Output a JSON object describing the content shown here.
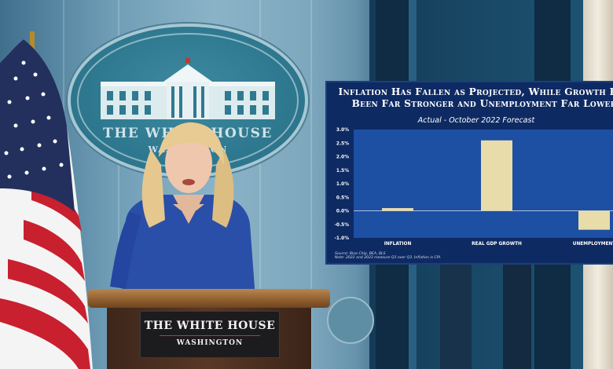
{
  "podium": {
    "title": "THE WHITE HOUSE",
    "subtitle": "WASHINGTON"
  },
  "seal": {
    "text": "THE WHITE HOUSE",
    "subtext": "WASHINGTON"
  },
  "slide": {
    "title_line1": "Inflation Has Fallen as Projected, While Growth Has",
    "title_line2": "Been Far Stronger and Unemployment Far Lower",
    "subtitle": "Actual - October 2022 Forecast",
    "source": "Source: Blue Chip, BEA, BLS",
    "note": "Note: 2022 and 2023 measure Q3 over Q3. Inflation is CPI."
  },
  "chart_data": {
    "type": "bar",
    "title": "Inflation Has Fallen as Projected, While Growth Has Been Far Stronger and Unemployment Far Lower",
    "subtitle": "Actual - October 2022 Forecast",
    "categories": [
      "INFLATION",
      "REAL GDP GROWTH",
      "UNEMPLOYMENT"
    ],
    "values": [
      0.1,
      2.6,
      -0.7
    ],
    "ylim": [
      -1.0,
      3.0
    ],
    "yticks": [
      "3.0%",
      "2.5%",
      "2.0%",
      "1.5%",
      "1.0%",
      "0.5%",
      "0.0%",
      "-0.5%",
      "-1.0%"
    ],
    "ytick_values": [
      3.0,
      2.5,
      2.0,
      1.5,
      1.0,
      0.5,
      0.0,
      -0.5,
      -1.0
    ],
    "bar_color": "#e8dcaa",
    "plot_color": "#1d4fa3",
    "background_color": "#0e2a63",
    "grid": false
  }
}
